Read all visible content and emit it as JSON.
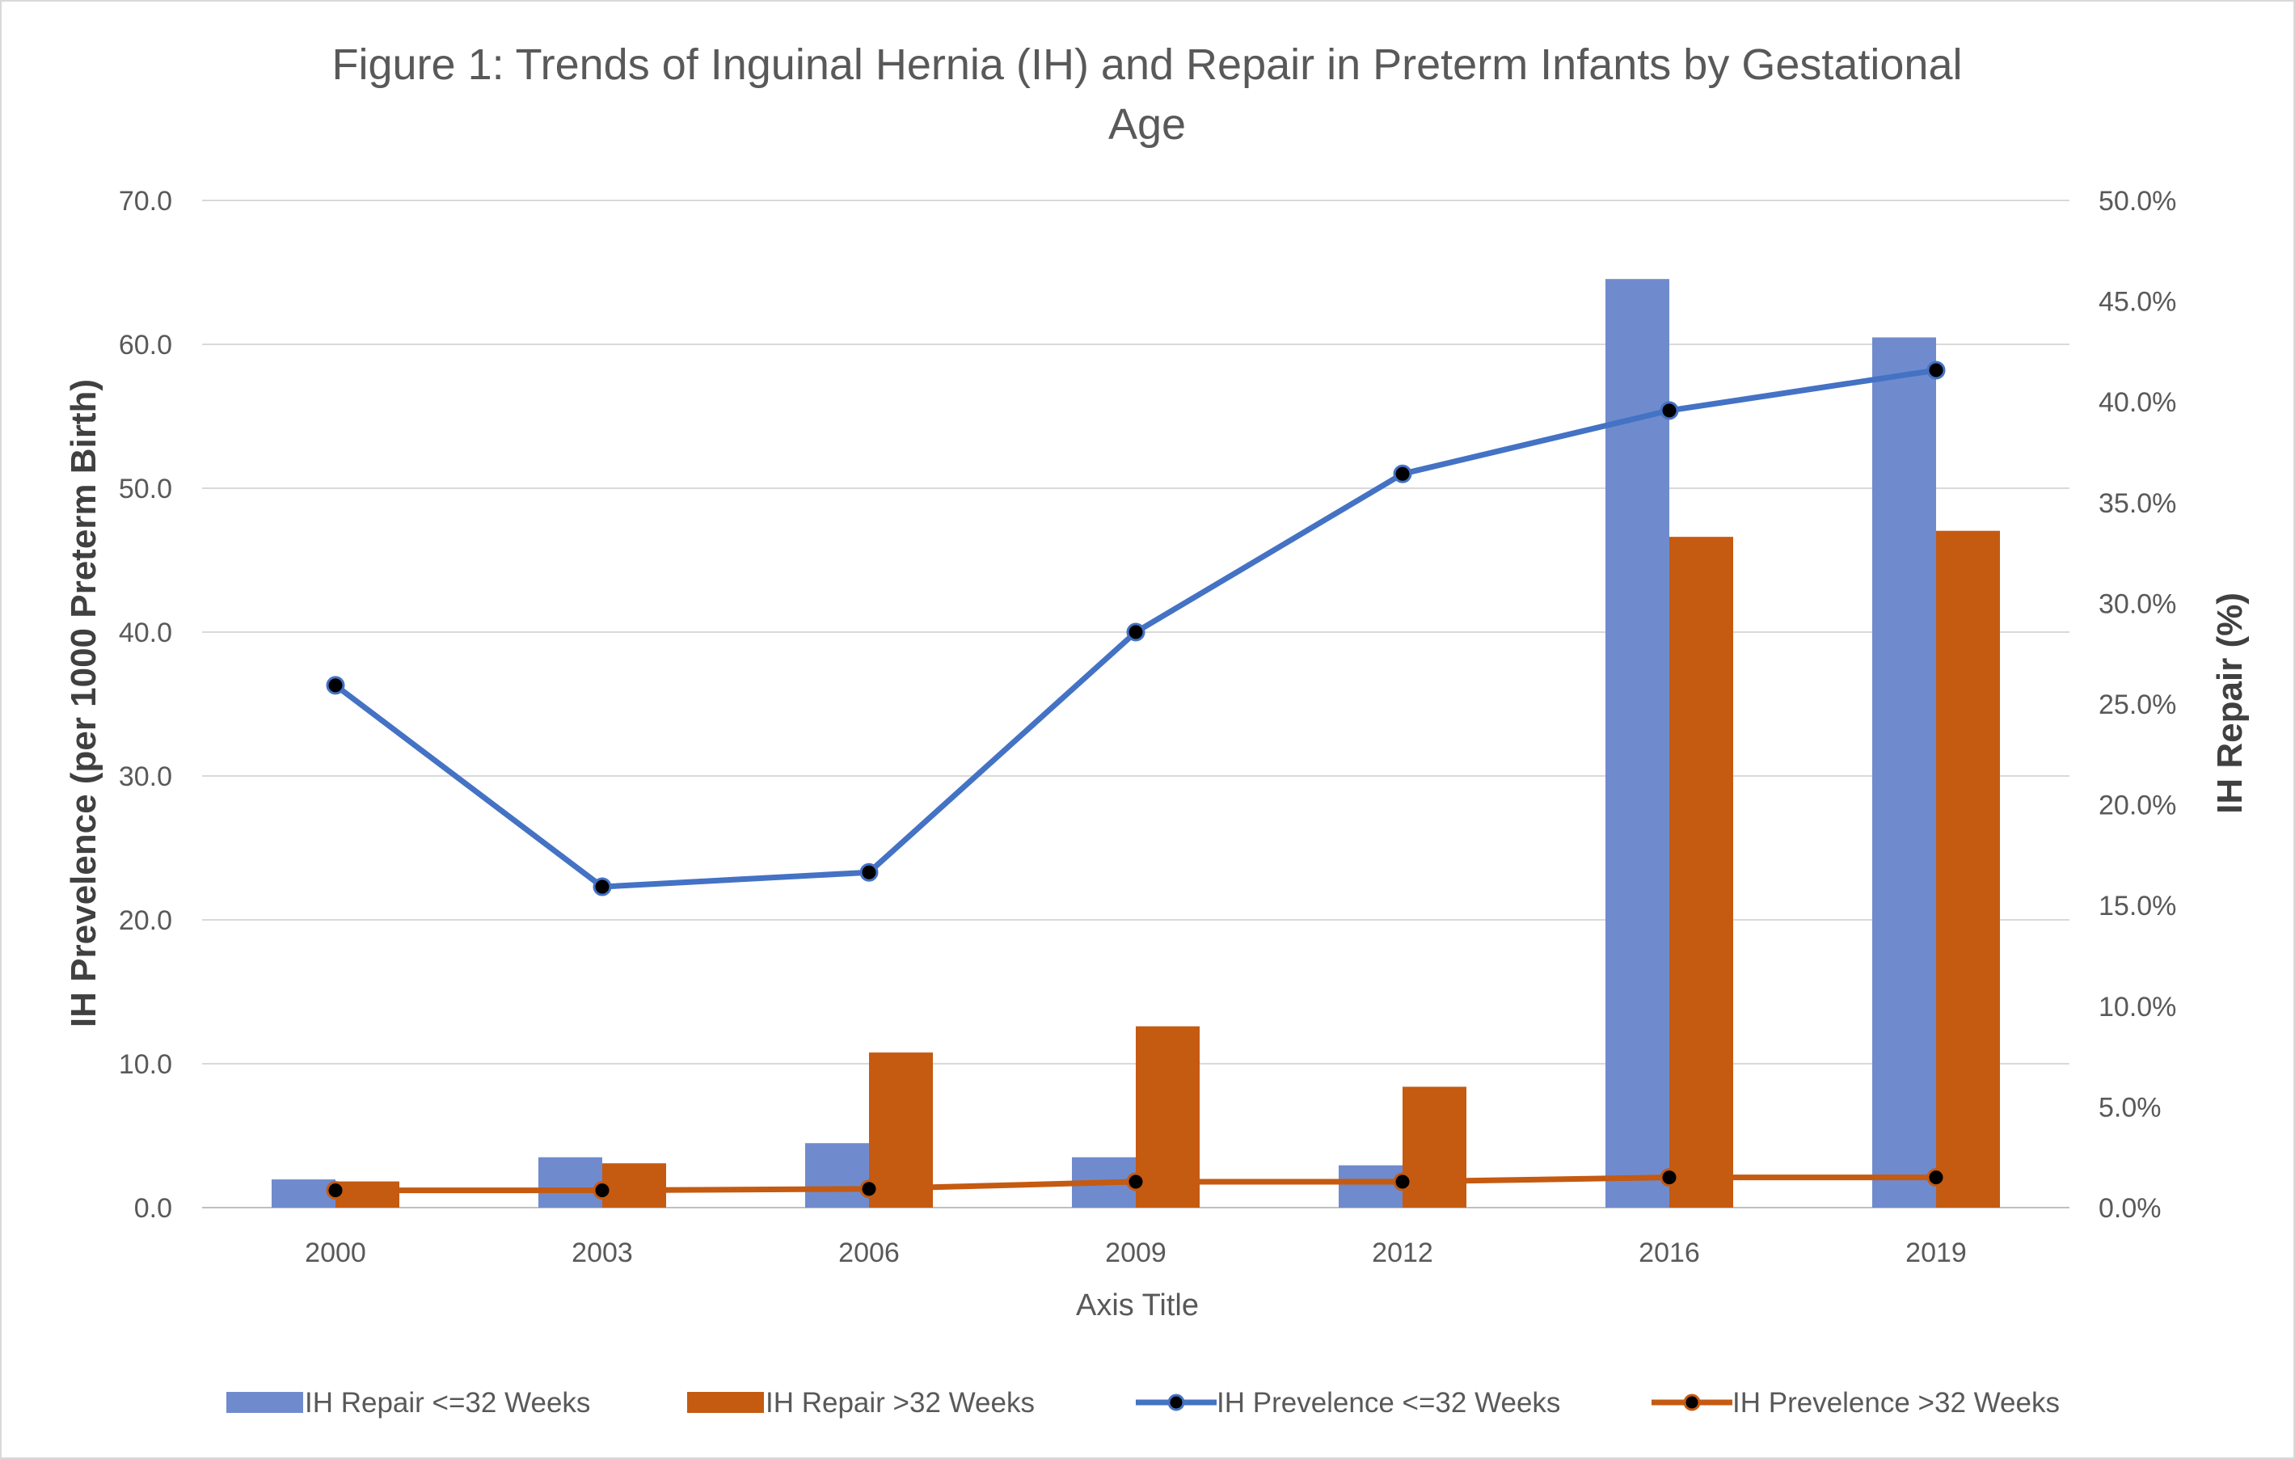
{
  "chart_data": {
    "type": "bar",
    "title_line1": "Figure 1: Trends of Inguinal Hernia (IH) and Repair in Preterm Infants by Gestational",
    "title_line2": "Age",
    "xlabel": "Axis Title",
    "ylabel_left": "IH Prevelence  (per 1000 Preterm Birth)",
    "ylabel_right": "IH Repair (%)",
    "categories": [
      "2000",
      "2003",
      "2006",
      "2009",
      "2012",
      "2016",
      "2019"
    ],
    "ylim_left": [
      0,
      70
    ],
    "ylim_right": [
      0,
      0.5
    ],
    "left_ticks": [
      "0.0",
      "10.0",
      "20.0",
      "30.0",
      "40.0",
      "50.0",
      "60.0",
      "70.0"
    ],
    "right_ticks": [
      "0.0%",
      "5.0%",
      "10.0%",
      "15.0%",
      "20.0%",
      "25.0%",
      "30.0%",
      "35.0%",
      "40.0%",
      "45.0%",
      "50.0%"
    ],
    "grid": true,
    "legend_position": "bottom",
    "series": [
      {
        "name": "IH Repair  <=32 Weeks",
        "type": "bar",
        "axis": "right",
        "color": "#6F8BCD",
        "values": [
          1.4,
          2.5,
          3.2,
          2.5,
          2.1,
          46.1,
          43.2
        ],
        "unit": "%"
      },
      {
        "name": "IH Repair  >32 Weeks",
        "type": "bar",
        "axis": "right",
        "color": "#C55A11",
        "values": [
          1.3,
          2.2,
          7.7,
          9.0,
          6.0,
          33.3,
          33.6
        ],
        "unit": "%"
      },
      {
        "name": "IH Prevelence <=32 Weeks",
        "type": "line",
        "axis": "left",
        "color": "#4472C4",
        "values": [
          36.3,
          22.3,
          23.3,
          40.0,
          51.0,
          55.4,
          58.2
        ]
      },
      {
        "name": "IH Prevelence >32 Weeks",
        "type": "line",
        "axis": "left",
        "color": "#C55A11",
        "values": [
          1.2,
          1.2,
          1.3,
          1.8,
          1.8,
          2.1,
          2.1
        ]
      }
    ]
  }
}
